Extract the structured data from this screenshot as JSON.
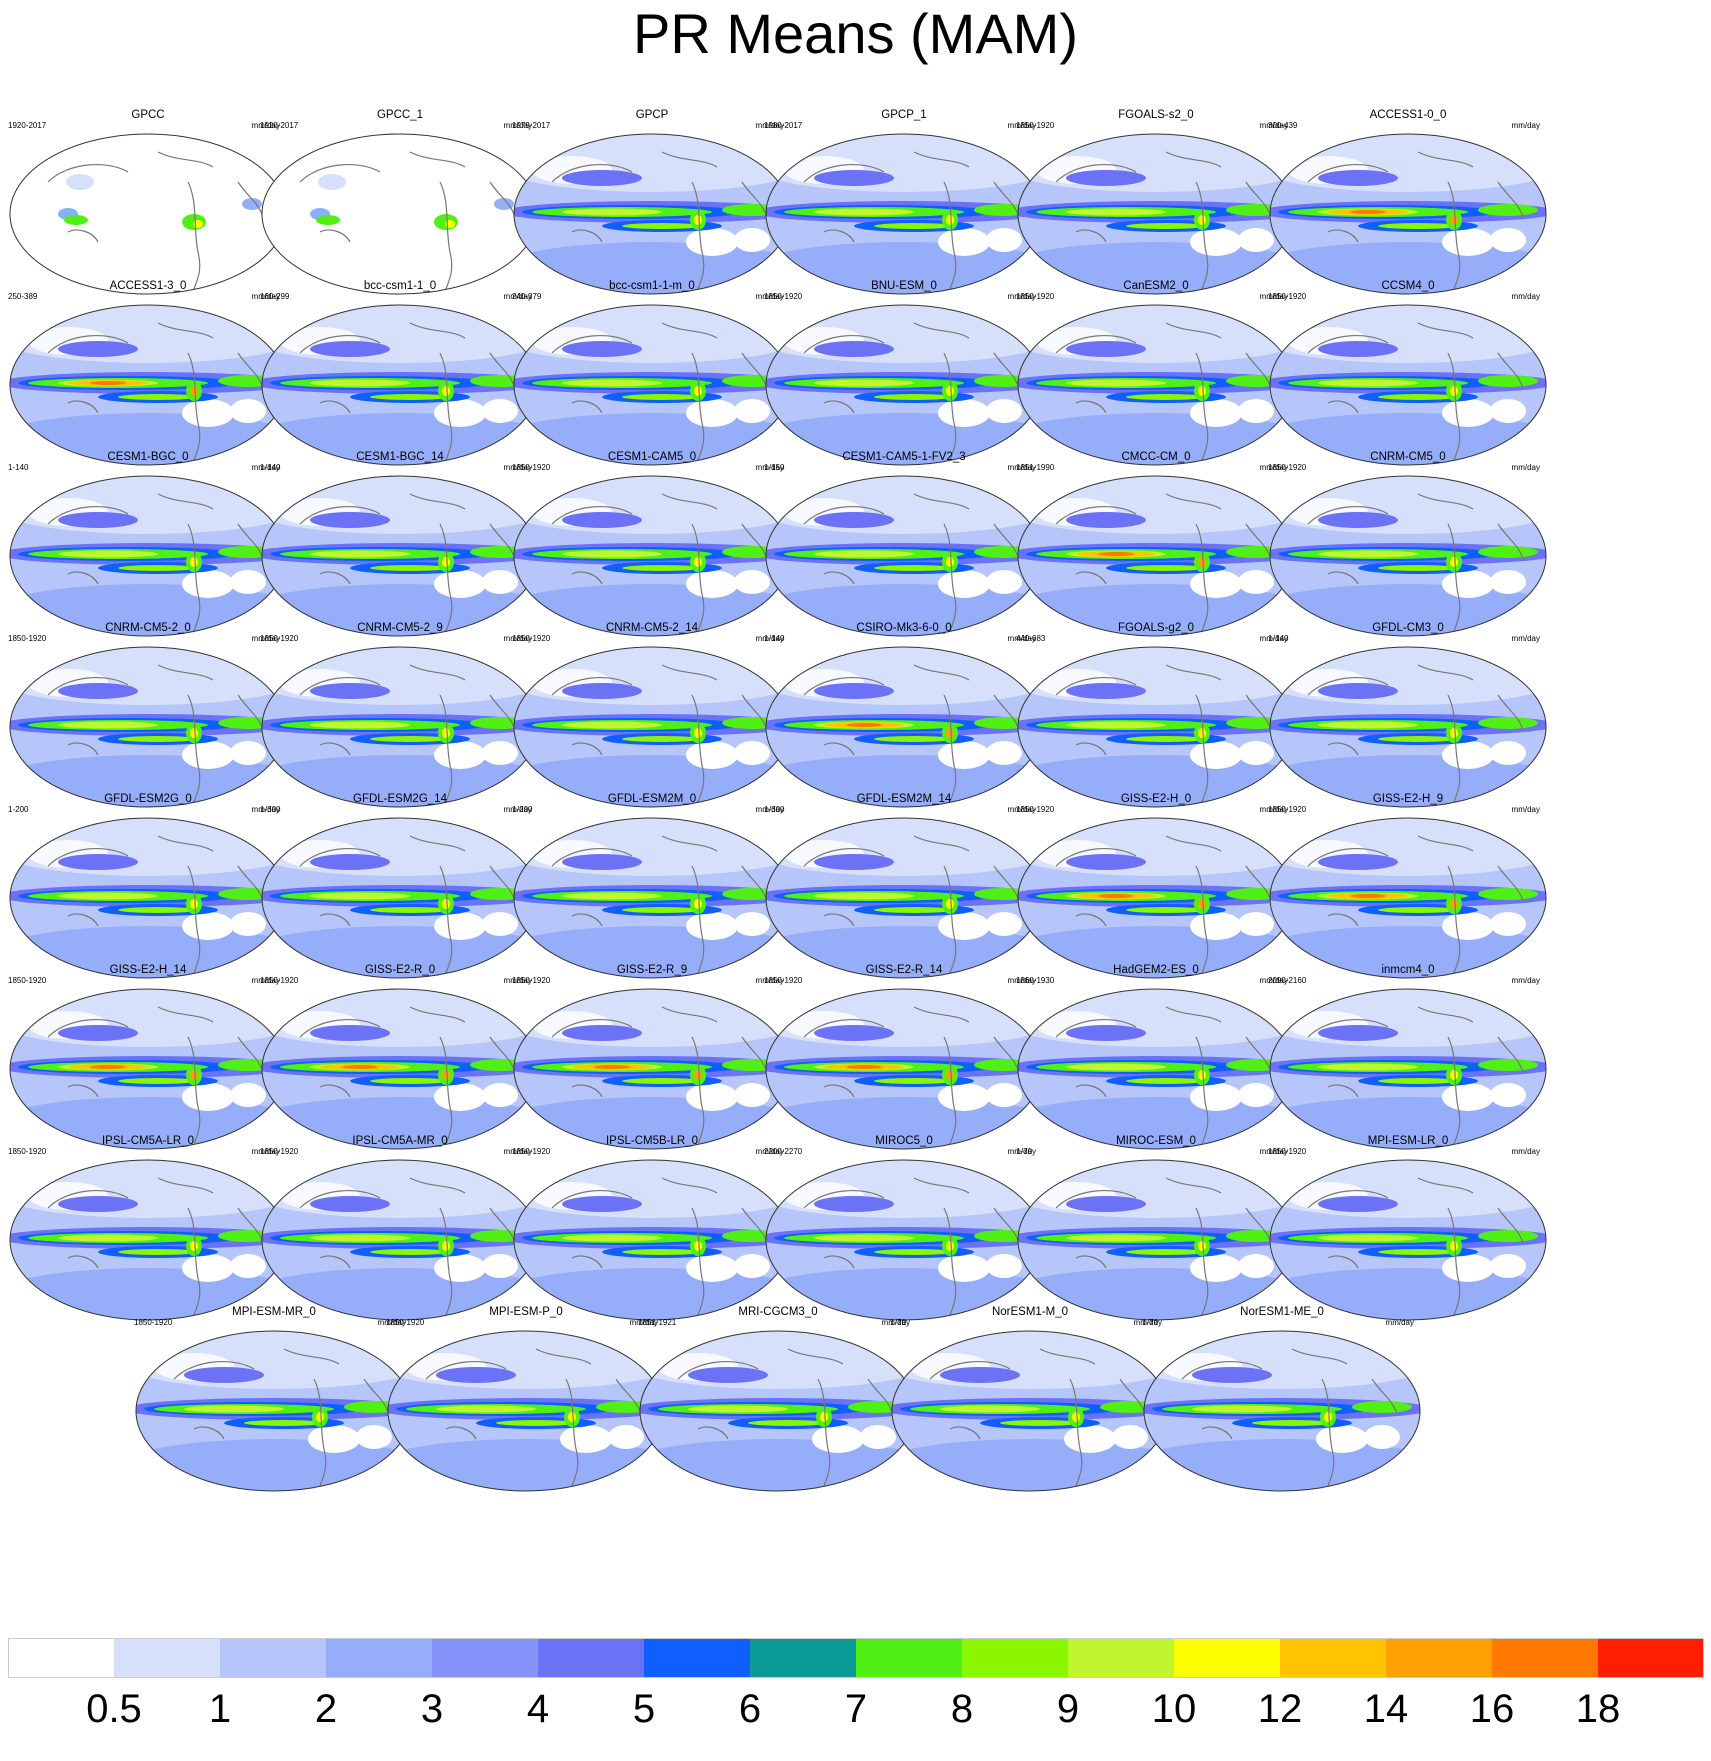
{
  "title": "PR Means (MAM)",
  "units": "mm/day",
  "colorbar": {
    "labels": [
      "0.5",
      "1",
      "2",
      "3",
      "4",
      "5",
      "6",
      "7",
      "8",
      "9",
      "10",
      "12",
      "14",
      "16",
      "18"
    ],
    "colors": [
      "#ffffff",
      "#d6e0fa",
      "#b6c6fa",
      "#96aefa",
      "#8593fa",
      "#6b72f5",
      "#0f5fff",
      "#0a9b96",
      "#50f014",
      "#8cf500",
      "#c0f530",
      "#ffff00",
      "#ffc300",
      "#ffa000",
      "#ff7800",
      "#ff1e00"
    ]
  },
  "panels": [
    {
      "title": "GPCC",
      "years": "1920-2017",
      "style": "land"
    },
    {
      "title": "GPCC_1",
      "years": "1920-2017",
      "style": "land"
    },
    {
      "title": "GPCP",
      "years": "1979-2017",
      "style": "obs"
    },
    {
      "title": "GPCP_1",
      "years": "1980-2017",
      "style": "obs"
    },
    {
      "title": "FGOALS-s2_0",
      "years": "1850-1920",
      "style": "model"
    },
    {
      "title": "ACCESS1-0_0",
      "years": "300-439",
      "style": "wet"
    },
    {
      "title": "ACCESS1-3_0",
      "years": "250-389",
      "style": "wet"
    },
    {
      "title": "bcc-csm1-1_0",
      "years": "160-299",
      "style": "model"
    },
    {
      "title": "bcc-csm1-1-m_0",
      "years": "240-379",
      "style": "model"
    },
    {
      "title": "BNU-ESM_0",
      "years": "1850-1920",
      "style": "model"
    },
    {
      "title": "CanESM2_0",
      "years": "1850-1920",
      "style": "model"
    },
    {
      "title": "CCSM4_0",
      "years": "1850-1920",
      "style": "model"
    },
    {
      "title": "CESM1-BGC_0",
      "years": "1-140",
      "style": "model"
    },
    {
      "title": "CESM1-BGC_14",
      "years": "1-140",
      "style": "model"
    },
    {
      "title": "CESM1-CAM5_0",
      "years": "1850-1920",
      "style": "model"
    },
    {
      "title": "CESM1-CAM5-1-FV2_3",
      "years": "1-150",
      "style": "model"
    },
    {
      "title": "CMCC-CM_0",
      "years": "1851-1990",
      "style": "wet"
    },
    {
      "title": "CNRM-CM5_0",
      "years": "1850-1920",
      "style": "model"
    },
    {
      "title": "CNRM-CM5-2_0",
      "years": "1850-1920",
      "style": "model"
    },
    {
      "title": "CNRM-CM5-2_9",
      "years": "1850-1920",
      "style": "model"
    },
    {
      "title": "CNRM-CM5-2_14",
      "years": "1850-1920",
      "style": "model"
    },
    {
      "title": "CSIRO-Mk3-6-0_0",
      "years": "1-140",
      "style": "wet"
    },
    {
      "title": "FGOALS-g2_0",
      "years": "440-683",
      "style": "model"
    },
    {
      "title": "GFDL-CM3_0",
      "years": "1-140",
      "style": "model"
    },
    {
      "title": "GFDL-ESM2G_0",
      "years": "1-200",
      "style": "model"
    },
    {
      "title": "GFDL-ESM2G_14",
      "years": "1-300",
      "style": "model"
    },
    {
      "title": "GFDL-ESM2M_0",
      "years": "1-200",
      "style": "model"
    },
    {
      "title": "GFDL-ESM2M_14",
      "years": "1-300",
      "style": "model"
    },
    {
      "title": "GISS-E2-H_0",
      "years": "1850-1920",
      "style": "wet"
    },
    {
      "title": "GISS-E2-H_9",
      "years": "1850-1920",
      "style": "wet"
    },
    {
      "title": "GISS-E2-H_14",
      "years": "1850-1920",
      "style": "wet"
    },
    {
      "title": "GISS-E2-R_0",
      "years": "1850-1920",
      "style": "wet"
    },
    {
      "title": "GISS-E2-R_9",
      "years": "1850-1920",
      "style": "wet"
    },
    {
      "title": "GISS-E2-R_14",
      "years": "1850-1920",
      "style": "wet"
    },
    {
      "title": "HadGEM2-ES_0",
      "years": "1860-1930",
      "style": "model"
    },
    {
      "title": "inmcm4_0",
      "years": "2090-2160",
      "style": "model"
    },
    {
      "title": "IPSL-CM5A-LR_0",
      "years": "1850-1920",
      "style": "model"
    },
    {
      "title": "IPSL-CM5A-MR_0",
      "years": "1850-1920",
      "style": "model"
    },
    {
      "title": "IPSL-CM5B-LR_0",
      "years": "1850-1920",
      "style": "model"
    },
    {
      "title": "MIROC5_0",
      "years": "2200-2270",
      "style": "model"
    },
    {
      "title": "MIROC-ESM_0",
      "years": "1-70",
      "style": "model"
    },
    {
      "title": "MPI-ESM-LR_0",
      "years": "1850-1920",
      "style": "model"
    },
    {
      "title": "MPI-ESM-MR_0",
      "years": "1850-1920",
      "style": "model"
    },
    {
      "title": "MPI-ESM-P_0",
      "years": "1850-1920",
      "style": "model"
    },
    {
      "title": "MRI-CGCM3_0",
      "years": "1851-1921",
      "style": "model"
    },
    {
      "title": "NorESM1-M_0",
      "years": "1-70",
      "style": "model"
    },
    {
      "title": "NorESM1-ME_0",
      "years": "1-70",
      "style": "model"
    }
  ]
}
